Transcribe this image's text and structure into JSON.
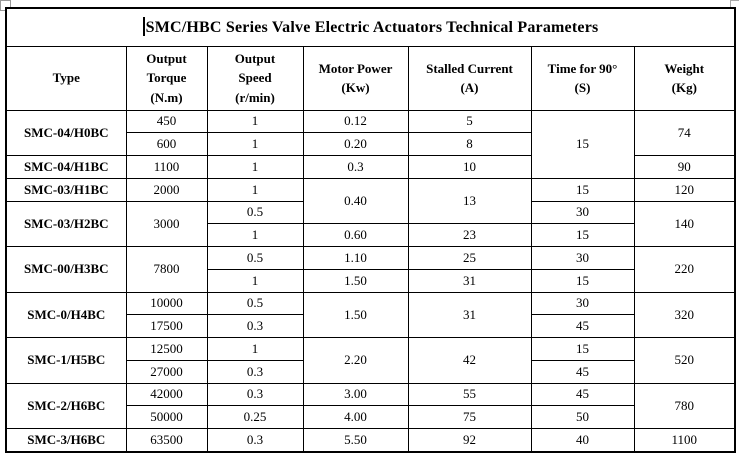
{
  "title": "SMC/HBC Series Valve Electric Actuators Technical Parameters",
  "colors": {
    "background": "#ffffff",
    "table_border": "#000000",
    "text": "#000000",
    "handle_border": "#9a9a9a"
  },
  "columns": [
    {
      "key": "type",
      "label": "Type",
      "lines": [
        "Type"
      ]
    },
    {
      "key": "torque",
      "label": "Output Torque (N.m)",
      "lines": [
        "Output",
        "Torque",
        "(N.m)"
      ]
    },
    {
      "key": "speed",
      "label": "Output Speed (r/min)",
      "lines": [
        "Output",
        "Speed",
        "(r/min)"
      ]
    },
    {
      "key": "power",
      "label": "Motor Power (Kw)",
      "lines": [
        "Motor Power",
        "(Kw)"
      ]
    },
    {
      "key": "current",
      "label": "Stalled Current (A)",
      "lines": [
        "Stalled Current",
        "(A)"
      ]
    },
    {
      "key": "time",
      "label": "Time for 90° (S)",
      "lines": [
        "Time for 90°",
        "(S)"
      ]
    },
    {
      "key": "weight",
      "label": "Weight (Kg)",
      "lines": [
        "Weight",
        "(Kg)"
      ]
    }
  ],
  "rows": [
    [
      {
        "v": "SMC-04/H0BC",
        "rs": 2,
        "n": "type-cell"
      },
      {
        "v": "450"
      },
      {
        "v": "1"
      },
      {
        "v": "0.12"
      },
      {
        "v": "5"
      },
      {
        "v": "15",
        "rs": 3
      },
      {
        "v": "74",
        "rs": 2
      }
    ],
    [
      {
        "v": "600"
      },
      {
        "v": "1"
      },
      {
        "v": "0.20"
      },
      {
        "v": "8"
      }
    ],
    [
      {
        "v": "SMC-04/H1BC",
        "n": "type-cell"
      },
      {
        "v": "1100"
      },
      {
        "v": "1"
      },
      {
        "v": "0.3"
      },
      {
        "v": "10"
      },
      {
        "v": "90"
      }
    ],
    [
      {
        "v": "SMC-03/H1BC",
        "n": "type-cell"
      },
      {
        "v": "2000"
      },
      {
        "v": "1"
      },
      {
        "v": "0.40",
        "rs": 2
      },
      {
        "v": "13",
        "rs": 2
      },
      {
        "v": "15"
      },
      {
        "v": "120"
      }
    ],
    [
      {
        "v": "SMC-03/H2BC",
        "rs": 2,
        "n": "type-cell"
      },
      {
        "v": "3000",
        "rs": 2
      },
      {
        "v": "0.5"
      },
      {
        "v": "30"
      },
      {
        "v": "140",
        "rs": 2
      }
    ],
    [
      {
        "v": "1"
      },
      {
        "v": "0.60"
      },
      {
        "v": "23"
      },
      {
        "v": "15"
      }
    ],
    [
      {
        "v": "SMC-00/H3BC",
        "rs": 2,
        "n": "type-cell"
      },
      {
        "v": "7800",
        "rs": 2
      },
      {
        "v": "0.5"
      },
      {
        "v": "1.10"
      },
      {
        "v": "25"
      },
      {
        "v": "30"
      },
      {
        "v": "220",
        "rs": 2
      }
    ],
    [
      {
        "v": "1"
      },
      {
        "v": "1.50"
      },
      {
        "v": "31"
      },
      {
        "v": "15"
      }
    ],
    [
      {
        "v": "SMC-0/H4BC",
        "rs": 2,
        "n": "type-cell"
      },
      {
        "v": "10000"
      },
      {
        "v": "0.5"
      },
      {
        "v": "1.50",
        "rs": 2
      },
      {
        "v": "31",
        "rs": 2
      },
      {
        "v": "30"
      },
      {
        "v": "320",
        "rs": 2
      }
    ],
    [
      {
        "v": "17500"
      },
      {
        "v": "0.3"
      },
      {
        "v": "45"
      }
    ],
    [
      {
        "v": "SMC-1/H5BC",
        "rs": 2,
        "n": "type-cell"
      },
      {
        "v": "12500"
      },
      {
        "v": "1"
      },
      {
        "v": "2.20",
        "rs": 2
      },
      {
        "v": "42",
        "rs": 2
      },
      {
        "v": "15"
      },
      {
        "v": "520",
        "rs": 2
      }
    ],
    [
      {
        "v": "27000"
      },
      {
        "v": "0.3"
      },
      {
        "v": "45"
      }
    ],
    [
      {
        "v": "SMC-2/H6BC",
        "rs": 2,
        "n": "type-cell"
      },
      {
        "v": "42000"
      },
      {
        "v": "0.3"
      },
      {
        "v": "3.00"
      },
      {
        "v": "55"
      },
      {
        "v": "45"
      },
      {
        "v": "780",
        "rs": 2
      }
    ],
    [
      {
        "v": "50000"
      },
      {
        "v": "0.25"
      },
      {
        "v": "4.00"
      },
      {
        "v": "75"
      },
      {
        "v": "50"
      }
    ],
    [
      {
        "v": "SMC-3/H6BC",
        "n": "type-cell"
      },
      {
        "v": "63500"
      },
      {
        "v": "0.3"
      },
      {
        "v": "5.50"
      },
      {
        "v": "92"
      },
      {
        "v": "40"
      },
      {
        "v": "1100"
      }
    ]
  ]
}
